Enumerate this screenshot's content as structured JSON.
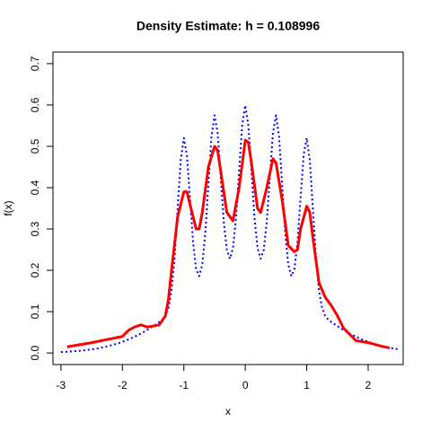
{
  "chart_data": {
    "type": "line",
    "title": "Density Estimate: h = 0.108996",
    "x_label": "x",
    "y_label": "f(x)",
    "xlim": [
      -3.13,
      2.57
    ],
    "ylim": [
      -0.028,
      0.728
    ],
    "xticks": [
      -3,
      -2,
      -1,
      0,
      1,
      2
    ],
    "yticks": [
      {
        "value": 0,
        "label": "0.0"
      },
      0.1,
      0.2,
      0.3,
      0.4,
      0.5,
      0.6,
      0.7
    ],
    "series": [
      {
        "color": "#0000ff",
        "dashed": true,
        "x": [
          -3.0,
          -2.9,
          -2.8,
          -2.7,
          -2.6,
          -2.5,
          -2.4,
          -2.3,
          -2.2,
          -2.1,
          -2.0,
          -1.9,
          -1.8,
          -1.7,
          -1.6,
          -1.5,
          -1.45,
          -1.4,
          -1.35,
          -1.3,
          -1.25,
          -1.2,
          -1.15,
          -1.1,
          -1.05,
          -1.0,
          -0.95,
          -0.9,
          -0.85,
          -0.8,
          -0.75,
          -0.7,
          -0.65,
          -0.6,
          -0.55,
          -0.5,
          -0.45,
          -0.4,
          -0.35,
          -0.3,
          -0.25,
          -0.2,
          -0.15,
          -0.1,
          -0.05,
          0,
          0.05,
          0.1,
          0.15,
          0.2,
          0.25,
          0.3,
          0.35,
          0.4,
          0.45,
          0.5,
          0.55,
          0.6,
          0.65,
          0.7,
          0.75,
          0.8,
          0.85,
          0.9,
          0.95,
          1.0,
          1.05,
          1.1,
          1.15,
          1.2,
          1.25,
          1.3,
          1.35,
          1.4,
          1.45,
          1.5,
          1.6,
          1.7,
          1.8,
          1.9,
          2.0,
          2.1,
          2.2,
          2.3,
          2.4,
          2.5
        ],
        "values": [
          0.0022,
          0.003,
          0.004,
          0.0052,
          0.0068,
          0.0088,
          0.0112,
          0.0142,
          0.0178,
          0.022,
          0.027,
          0.0328,
          0.0395,
          0.047,
          0.0555,
          0.065,
          0.07,
          0.075,
          0.081,
          0.09,
          0.109,
          0.151,
          0.232,
          0.351,
          0.467,
          0.52,
          0.479,
          0.375,
          0.269,
          0.203,
          0.186,
          0.214,
          0.291,
          0.409,
          0.523,
          0.575,
          0.532,
          0.426,
          0.318,
          0.249,
          0.228,
          0.254,
          0.327,
          0.441,
          0.551,
          0.599,
          0.551,
          0.441,
          0.327,
          0.254,
          0.228,
          0.249,
          0.318,
          0.426,
          0.532,
          0.575,
          0.523,
          0.409,
          0.291,
          0.214,
          0.186,
          0.203,
          0.269,
          0.375,
          0.479,
          0.52,
          0.467,
          0.351,
          0.232,
          0.151,
          0.109,
          0.09,
          0.081,
          0.075,
          0.07,
          0.065,
          0.0555,
          0.047,
          0.0395,
          0.0328,
          0.027,
          0.022,
          0.0178,
          0.0142,
          0.0112,
          0.0088
        ]
      },
      {
        "color": "#ff0000",
        "dashed": false,
        "x": [
          -2.9,
          -2.5,
          -2.0,
          -1.9,
          -1.8,
          -1.7,
          -1.6,
          -1.5,
          -1.4,
          -1.3,
          -1.25,
          -1.2,
          -1.1,
          -1.0,
          -0.95,
          -0.9,
          -0.8,
          -0.75,
          -0.7,
          -0.6,
          -0.5,
          -0.45,
          -0.4,
          -0.3,
          -0.2,
          -0.1,
          0,
          0.05,
          0.1,
          0.2,
          0.25,
          0.35,
          0.45,
          0.5,
          0.6,
          0.7,
          0.8,
          0.85,
          0.9,
          1.0,
          1.05,
          1.1,
          1.2,
          1.3,
          1.4,
          1.5,
          1.6,
          1.7,
          1.8,
          2.0,
          2.2,
          2.35
        ],
        "values": [
          0.015,
          0.025,
          0.04,
          0.055,
          0.063,
          0.068,
          0.063,
          0.065,
          0.068,
          0.09,
          0.13,
          0.2,
          0.33,
          0.39,
          0.39,
          0.36,
          0.3,
          0.3,
          0.34,
          0.45,
          0.5,
          0.49,
          0.44,
          0.34,
          0.32,
          0.4,
          0.515,
          0.51,
          0.46,
          0.35,
          0.34,
          0.4,
          0.47,
          0.46,
          0.37,
          0.26,
          0.245,
          0.25,
          0.3,
          0.355,
          0.34,
          0.28,
          0.17,
          0.135,
          0.115,
          0.09,
          0.06,
          0.045,
          0.03,
          0.025,
          0.017,
          0.012
        ]
      }
    ]
  }
}
